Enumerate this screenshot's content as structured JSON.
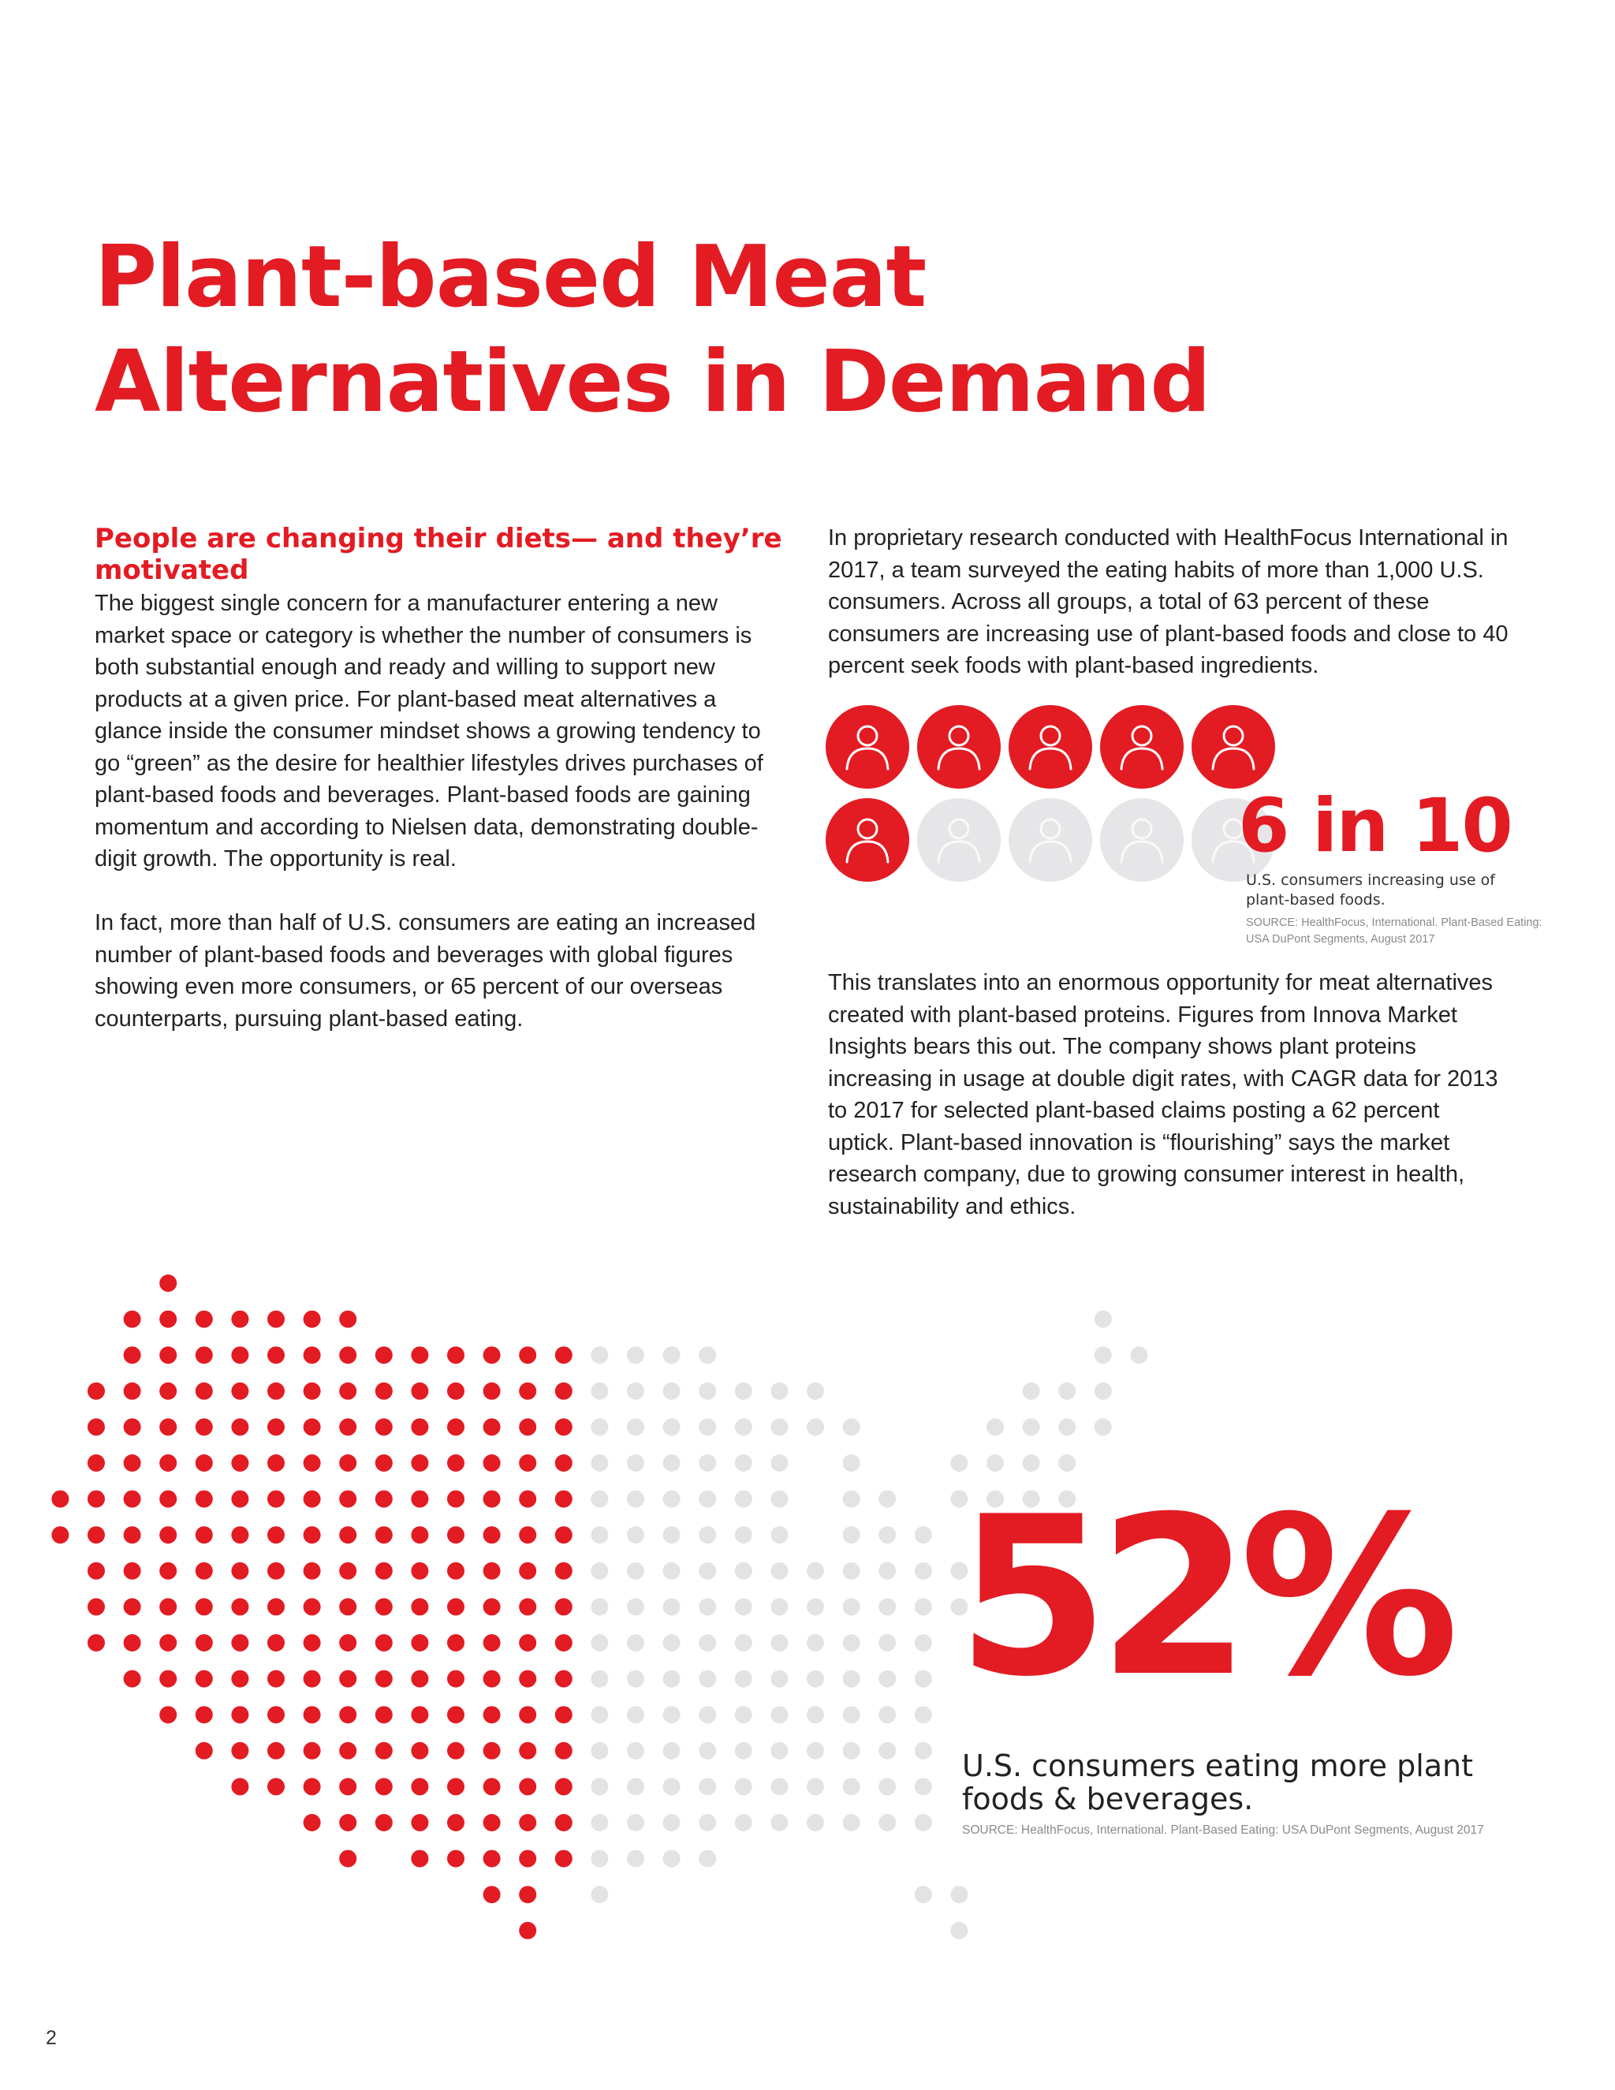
{
  "page": {
    "title": "Plant-based Meat Alternatives in Demand",
    "subhead": "People are changing their diets— and they’re motivated",
    "paragraphs": [
      "The biggest single concern for a manufacturer entering a new market space or category is whether the number of consumers is both substantial enough and ready and willing to support new products at a given price. For plant-based meat alternatives a glance inside the consumer mindset shows a growing tendency to go “green” as the desire for healthier lifestyles drives purchases of plant-based foods and beverages. Plant-based foods are gaining momentum and according to Nielsen data, demonstrating double-digit growth. The opportunity is real.",
      "In fact, more than half of U.S. consumers are eating an increased number of plant-based foods and beverages with global figures showing even more consumers, or 65 percent of our overseas counterparts, pursuing plant-based eating.",
      "In proprietary research conducted with HealthFocus International in 2017, a team surveyed the eating habits of more than 1,000 U.S. consumers. Across all groups, a total of 63 percent of these consumers are increasing use of plant-based foods and close to 40 percent seek foods with plant-based ingredients.",
      "This translates into an enormous opportunity for meat alternatives created with plant-based proteins. Figures from Innova Market Insights bears this out. The company shows plant proteins increasing in usage at double digit rates, with CAGR data for 2013 to 2017 for selected plant-based claims posting a 62 percent uptick. Plant-based innovation is “flourishing” says the market research company, due to growing consumer interest in health, sustainability and ethics."
    ],
    "page_number": "2"
  },
  "stat_six_in_ten": {
    "value": "6 in 10",
    "label": "U.S. consumers increasing use of plant-based foods.",
    "source": "SOURCE: HealthFocus, International. Plant-Based Eating: USA DuPont Segments, August 2017",
    "icons_total": 10,
    "icons_highlighted": 6,
    "icon": "person-icon"
  },
  "stat_fifty_two": {
    "value": "52%",
    "label": "U.S. consumers eating more plant foods & beverages.",
    "source": "SOURCE: HealthFocus, International. Plant-Based Eating: USA DuPont Segments, August 2017",
    "map": "us-dot-map"
  },
  "colors": {
    "accent_red": "#e31b23",
    "dot_gray": "#e3e3e3",
    "icon_gray": "#e6e6e8",
    "text": "#222222",
    "source_gray": "#8a8a8a"
  }
}
